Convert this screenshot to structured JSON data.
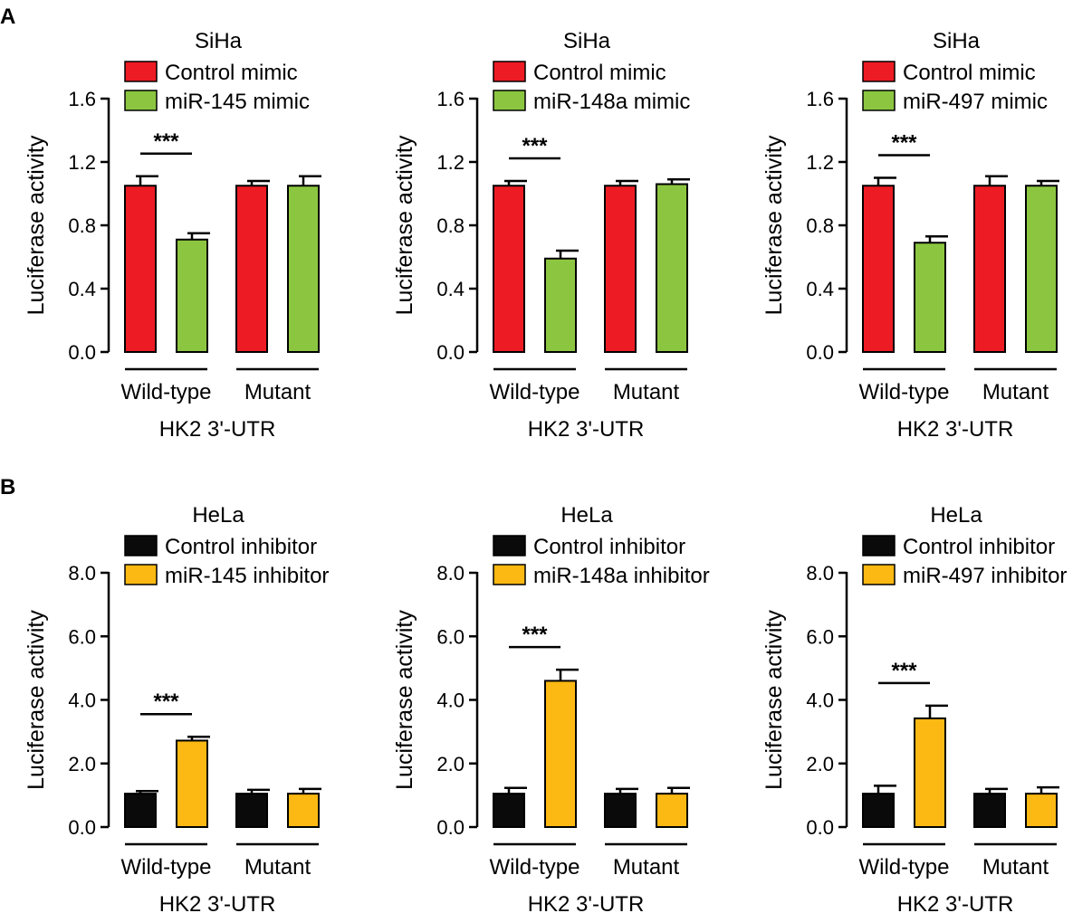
{
  "panels": [
    {
      "label": "A"
    },
    {
      "label": "B"
    }
  ],
  "colors": {
    "control_mimic": "#ed1c24",
    "mimic": "#8cc641",
    "control_inhibitor": "#0a0a0a",
    "inhibitor": "#fdb913"
  },
  "chart_data": [
    {
      "type": "bar",
      "panel": "A",
      "title": "SiHa",
      "ylabel": "Luciferase activity",
      "xlabel": "HK2 3'-UTR",
      "ylim": [
        0,
        1.6
      ],
      "yticks": [
        "0.0",
        "0.4",
        "0.8",
        "1.2",
        "1.6"
      ],
      "categories": [
        "Wild-type",
        "Mutant"
      ],
      "series": [
        {
          "name": "Control mimic",
          "color": "#ed1c24",
          "values": [
            1.05,
            1.05
          ],
          "errors": [
            0.06,
            0.03
          ]
        },
        {
          "name": "miR-145 mimic",
          "color": "#8cc641",
          "values": [
            0.71,
            1.05
          ],
          "errors": [
            0.04,
            0.06
          ]
        }
      ],
      "significance": [
        {
          "category": "Wild-type",
          "label": "***"
        }
      ]
    },
    {
      "type": "bar",
      "panel": "A",
      "title": "SiHa",
      "ylabel": "Luciferase activity",
      "xlabel": "HK2 3'-UTR",
      "ylim": [
        0,
        1.6
      ],
      "yticks": [
        "0.0",
        "0.4",
        "0.8",
        "1.2",
        "1.6"
      ],
      "categories": [
        "Wild-type",
        "Mutant"
      ],
      "series": [
        {
          "name": "Control mimic",
          "color": "#ed1c24",
          "values": [
            1.05,
            1.05
          ],
          "errors": [
            0.03,
            0.03
          ]
        },
        {
          "name": "miR-148a mimic",
          "color": "#8cc641",
          "values": [
            0.59,
            1.06
          ],
          "errors": [
            0.05,
            0.03
          ]
        }
      ],
      "significance": [
        {
          "category": "Wild-type",
          "label": "***"
        }
      ]
    },
    {
      "type": "bar",
      "panel": "A",
      "title": "SiHa",
      "ylabel": "Luciferase activity",
      "xlabel": "HK2 3'-UTR",
      "ylim": [
        0,
        1.6
      ],
      "yticks": [
        "0.0",
        "0.4",
        "0.8",
        "1.2",
        "1.6"
      ],
      "categories": [
        "Wild-type",
        "Mutant"
      ],
      "series": [
        {
          "name": "Control mimic",
          "color": "#ed1c24",
          "values": [
            1.05,
            1.05
          ],
          "errors": [
            0.05,
            0.06
          ]
        },
        {
          "name": "miR-497 mimic",
          "color": "#8cc641",
          "values": [
            0.69,
            1.05
          ],
          "errors": [
            0.04,
            0.03
          ]
        }
      ],
      "significance": [
        {
          "category": "Wild-type",
          "label": "***"
        }
      ]
    },
    {
      "type": "bar",
      "panel": "B",
      "title": "HeLa",
      "ylabel": "Luciferase activity",
      "xlabel": "HK2 3'-UTR",
      "ylim": [
        0,
        8.0
      ],
      "yticks": [
        "0.0",
        "2.0",
        "4.0",
        "6.0",
        "8.0"
      ],
      "categories": [
        "Wild-type",
        "Mutant"
      ],
      "series": [
        {
          "name": "Control inhibitor",
          "color": "#0a0a0a",
          "values": [
            1.05,
            1.05
          ],
          "errors": [
            0.08,
            0.12
          ]
        },
        {
          "name": "miR-145 inhibitor",
          "color": "#fdb913",
          "values": [
            2.72,
            1.05
          ],
          "errors": [
            0.12,
            0.15
          ]
        }
      ],
      "significance": [
        {
          "category": "Wild-type",
          "label": "***"
        }
      ]
    },
    {
      "type": "bar",
      "panel": "B",
      "title": "HeLa",
      "ylabel": "Luciferase activity",
      "xlabel": "HK2 3'-UTR",
      "ylim": [
        0,
        8.0
      ],
      "yticks": [
        "0.0",
        "2.0",
        "4.0",
        "6.0",
        "8.0"
      ],
      "categories": [
        "Wild-type",
        "Mutant"
      ],
      "series": [
        {
          "name": "Control inhibitor",
          "color": "#0a0a0a",
          "values": [
            1.05,
            1.05
          ],
          "errors": [
            0.18,
            0.15
          ]
        },
        {
          "name": "miR-148a inhibitor",
          "color": "#fdb913",
          "values": [
            4.6,
            1.05
          ],
          "errors": [
            0.35,
            0.18
          ]
        }
      ],
      "significance": [
        {
          "category": "Wild-type",
          "label": "***"
        }
      ]
    },
    {
      "type": "bar",
      "panel": "B",
      "title": "HeLa",
      "ylabel": "Luciferase activity",
      "xlabel": "HK2 3'-UTR",
      "ylim": [
        0,
        8.0
      ],
      "yticks": [
        "0.0",
        "2.0",
        "4.0",
        "6.0",
        "8.0"
      ],
      "categories": [
        "Wild-type",
        "Mutant"
      ],
      "series": [
        {
          "name": "Control inhibitor",
          "color": "#0a0a0a",
          "values": [
            1.05,
            1.05
          ],
          "errors": [
            0.25,
            0.15
          ]
        },
        {
          "name": "miR-497 inhibitor",
          "color": "#fdb913",
          "values": [
            3.42,
            1.05
          ],
          "errors": [
            0.4,
            0.2
          ]
        }
      ],
      "significance": [
        {
          "category": "Wild-type",
          "label": "***"
        }
      ]
    }
  ]
}
